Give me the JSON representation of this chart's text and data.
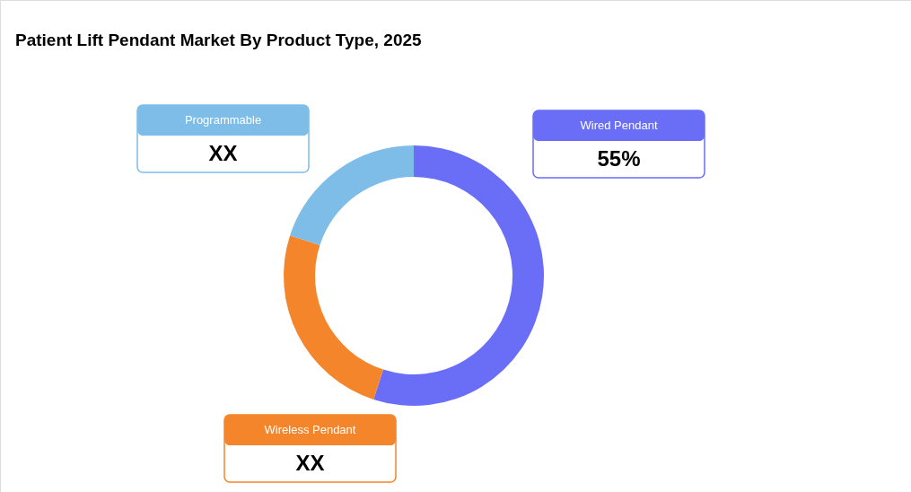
{
  "chart_data": {
    "type": "donut",
    "title": "Patient Lift Pendant Market By Product Type, 2025",
    "categories": [
      "Wired Pendant",
      "Wireless Pendant",
      "Programmable"
    ],
    "values": [
      55,
      25,
      20
    ],
    "colors": [
      "#6a6ef7",
      "#f5852a",
      "#7dbde8"
    ],
    "value_labels": [
      "55%",
      "XX",
      "XX"
    ]
  }
}
